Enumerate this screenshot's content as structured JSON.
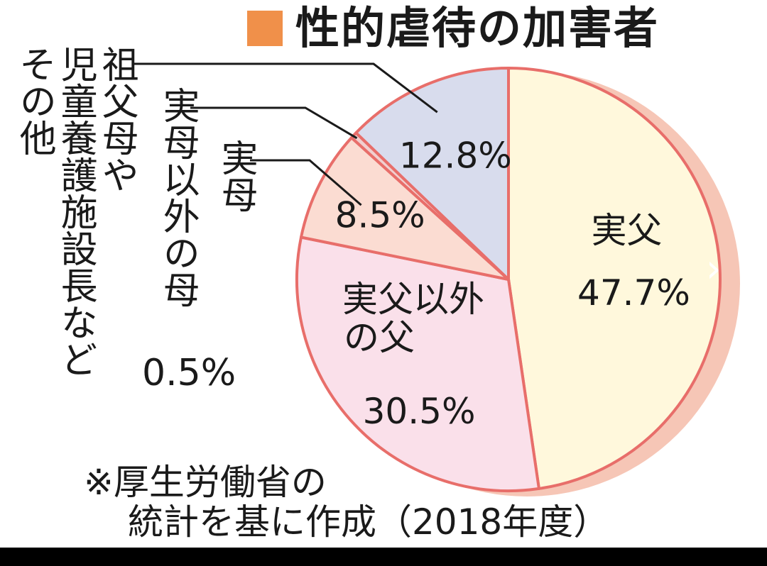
{
  "title": "性的虐待の加害者",
  "title_swatch_color": "#f0904a",
  "chart_data": {
    "type": "pie",
    "title": "性的虐待の加害者",
    "slices": [
      {
        "label": "実父",
        "value": 47.7,
        "value_label": "47.7%",
        "color": "#fff8dc"
      },
      {
        "label": "実父以外の父",
        "value": 30.5,
        "value_label": "30.5%",
        "color": "#fae0ea"
      },
      {
        "label": "実母",
        "value": 8.5,
        "value_label": "8.5%",
        "color": "#fbdcd2"
      },
      {
        "label": "実母以外の母",
        "value": 0.5,
        "value_label": "0.5%",
        "color": "#f1cfcf"
      },
      {
        "label": "祖父母や児童養護施設長などその他",
        "value": 12.8,
        "value_label": "12.8%",
        "color": "#d8dced"
      }
    ],
    "stroke_color": "#e86e6a",
    "shadow_color": "#f6c6b6"
  },
  "labels": {
    "jitsufu": "実父",
    "jitsufu_igai_line1": "実父以外",
    "jitsufu_igai_line2": "の父",
    "jitsubo": "実母",
    "jitsubo_igai": "実母以外の母",
    "jitsubo_igai_value": "0.5%",
    "sofubo_col1": "祖父母や",
    "sofubo_col2": "児童養護施設長など",
    "sofubo_col3": "その他"
  },
  "note": {
    "line1": "※厚生労働省の",
    "line2": "統計を基に作成（2018年度）"
  },
  "nav": {
    "next_icon": "chevron-right-icon",
    "glyph": "›"
  }
}
